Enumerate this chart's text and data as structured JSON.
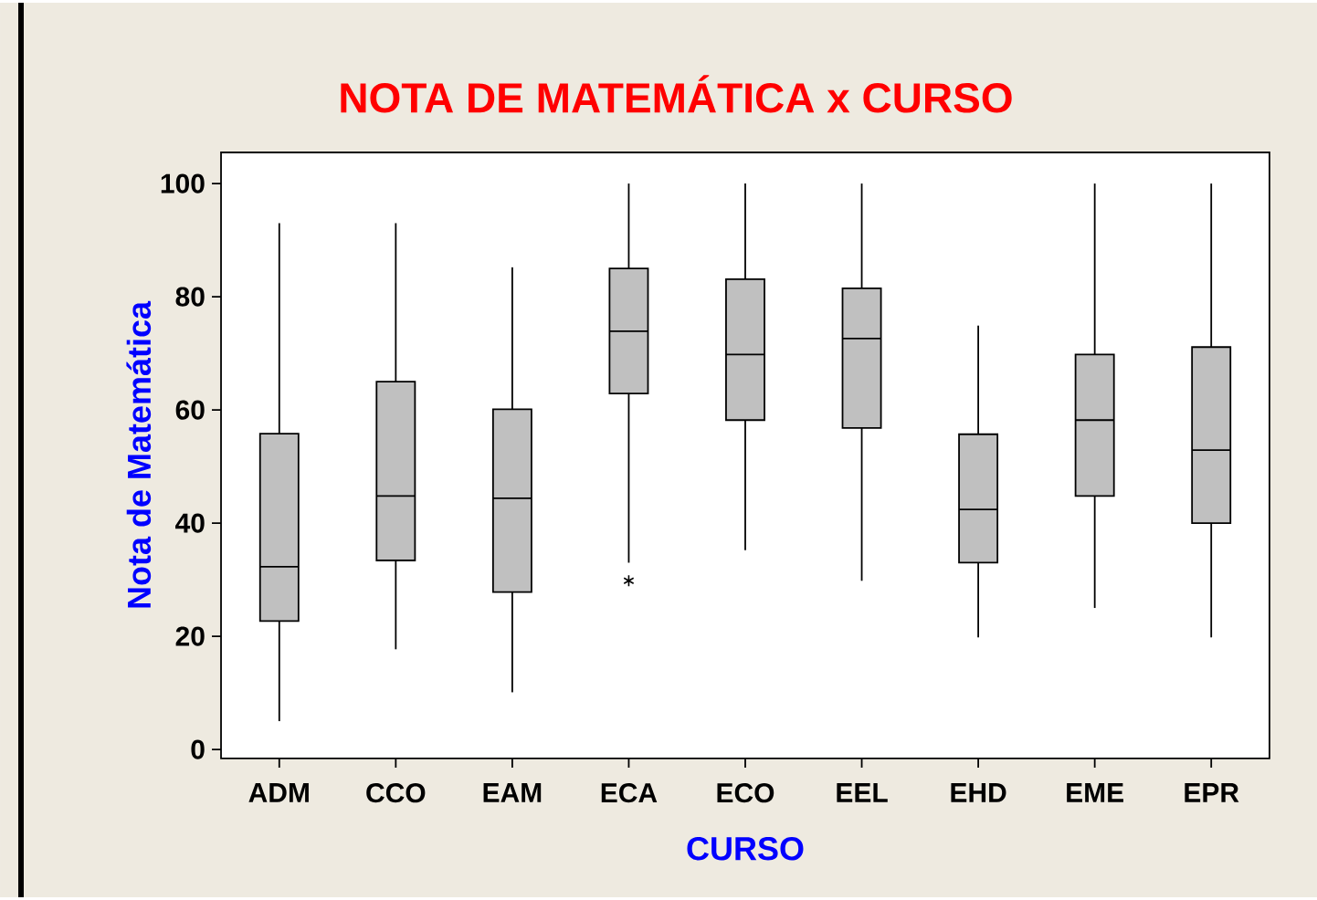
{
  "chart_data": {
    "type": "box",
    "title": "NOTA DE MATEMÁTICA x CURSO",
    "xlabel": "CURSO",
    "ylabel": "Nota de Matemática",
    "categories": [
      "ADM",
      "CCO",
      "EAM",
      "ECA",
      "ECO",
      "EEL",
      "EHD",
      "EME",
      "EPR"
    ],
    "color": "#c0c0c0",
    "boxes": [
      {
        "low": 5,
        "q1": 22.7,
        "median": 32.3,
        "q3": 55.8,
        "high": 93
      },
      {
        "low": 17.7,
        "q1": 33.4,
        "median": 44.8,
        "q3": 65,
        "high": 93
      },
      {
        "low": 10.1,
        "q1": 27.8,
        "median": 44.4,
        "q3": 60.1,
        "high": 85.2
      },
      {
        "low": 33,
        "q1": 62.9,
        "median": 73.9,
        "q3": 85,
        "high": 100,
        "outliers": [
          29.8
        ]
      },
      {
        "low": 35.2,
        "q1": 58.2,
        "median": 69.8,
        "q3": 83.1,
        "high": 100
      },
      {
        "low": 29.8,
        "q1": 56.8,
        "median": 72.6,
        "q3": 81.5,
        "high": 100
      },
      {
        "low": 19.8,
        "q1": 33,
        "median": 42.4,
        "q3": 55.7,
        "high": 74.9
      },
      {
        "low": 25,
        "q1": 44.8,
        "median": 58.2,
        "q3": 69.8,
        "high": 100
      },
      {
        "low": 19.8,
        "q1": 40,
        "median": 52.9,
        "q3": 71.1,
        "high": 100
      }
    ],
    "ylim": [
      -1.6,
      105.5
    ],
    "yticks": [
      0,
      20,
      40,
      60,
      80,
      100
    ],
    "grid": false
  }
}
